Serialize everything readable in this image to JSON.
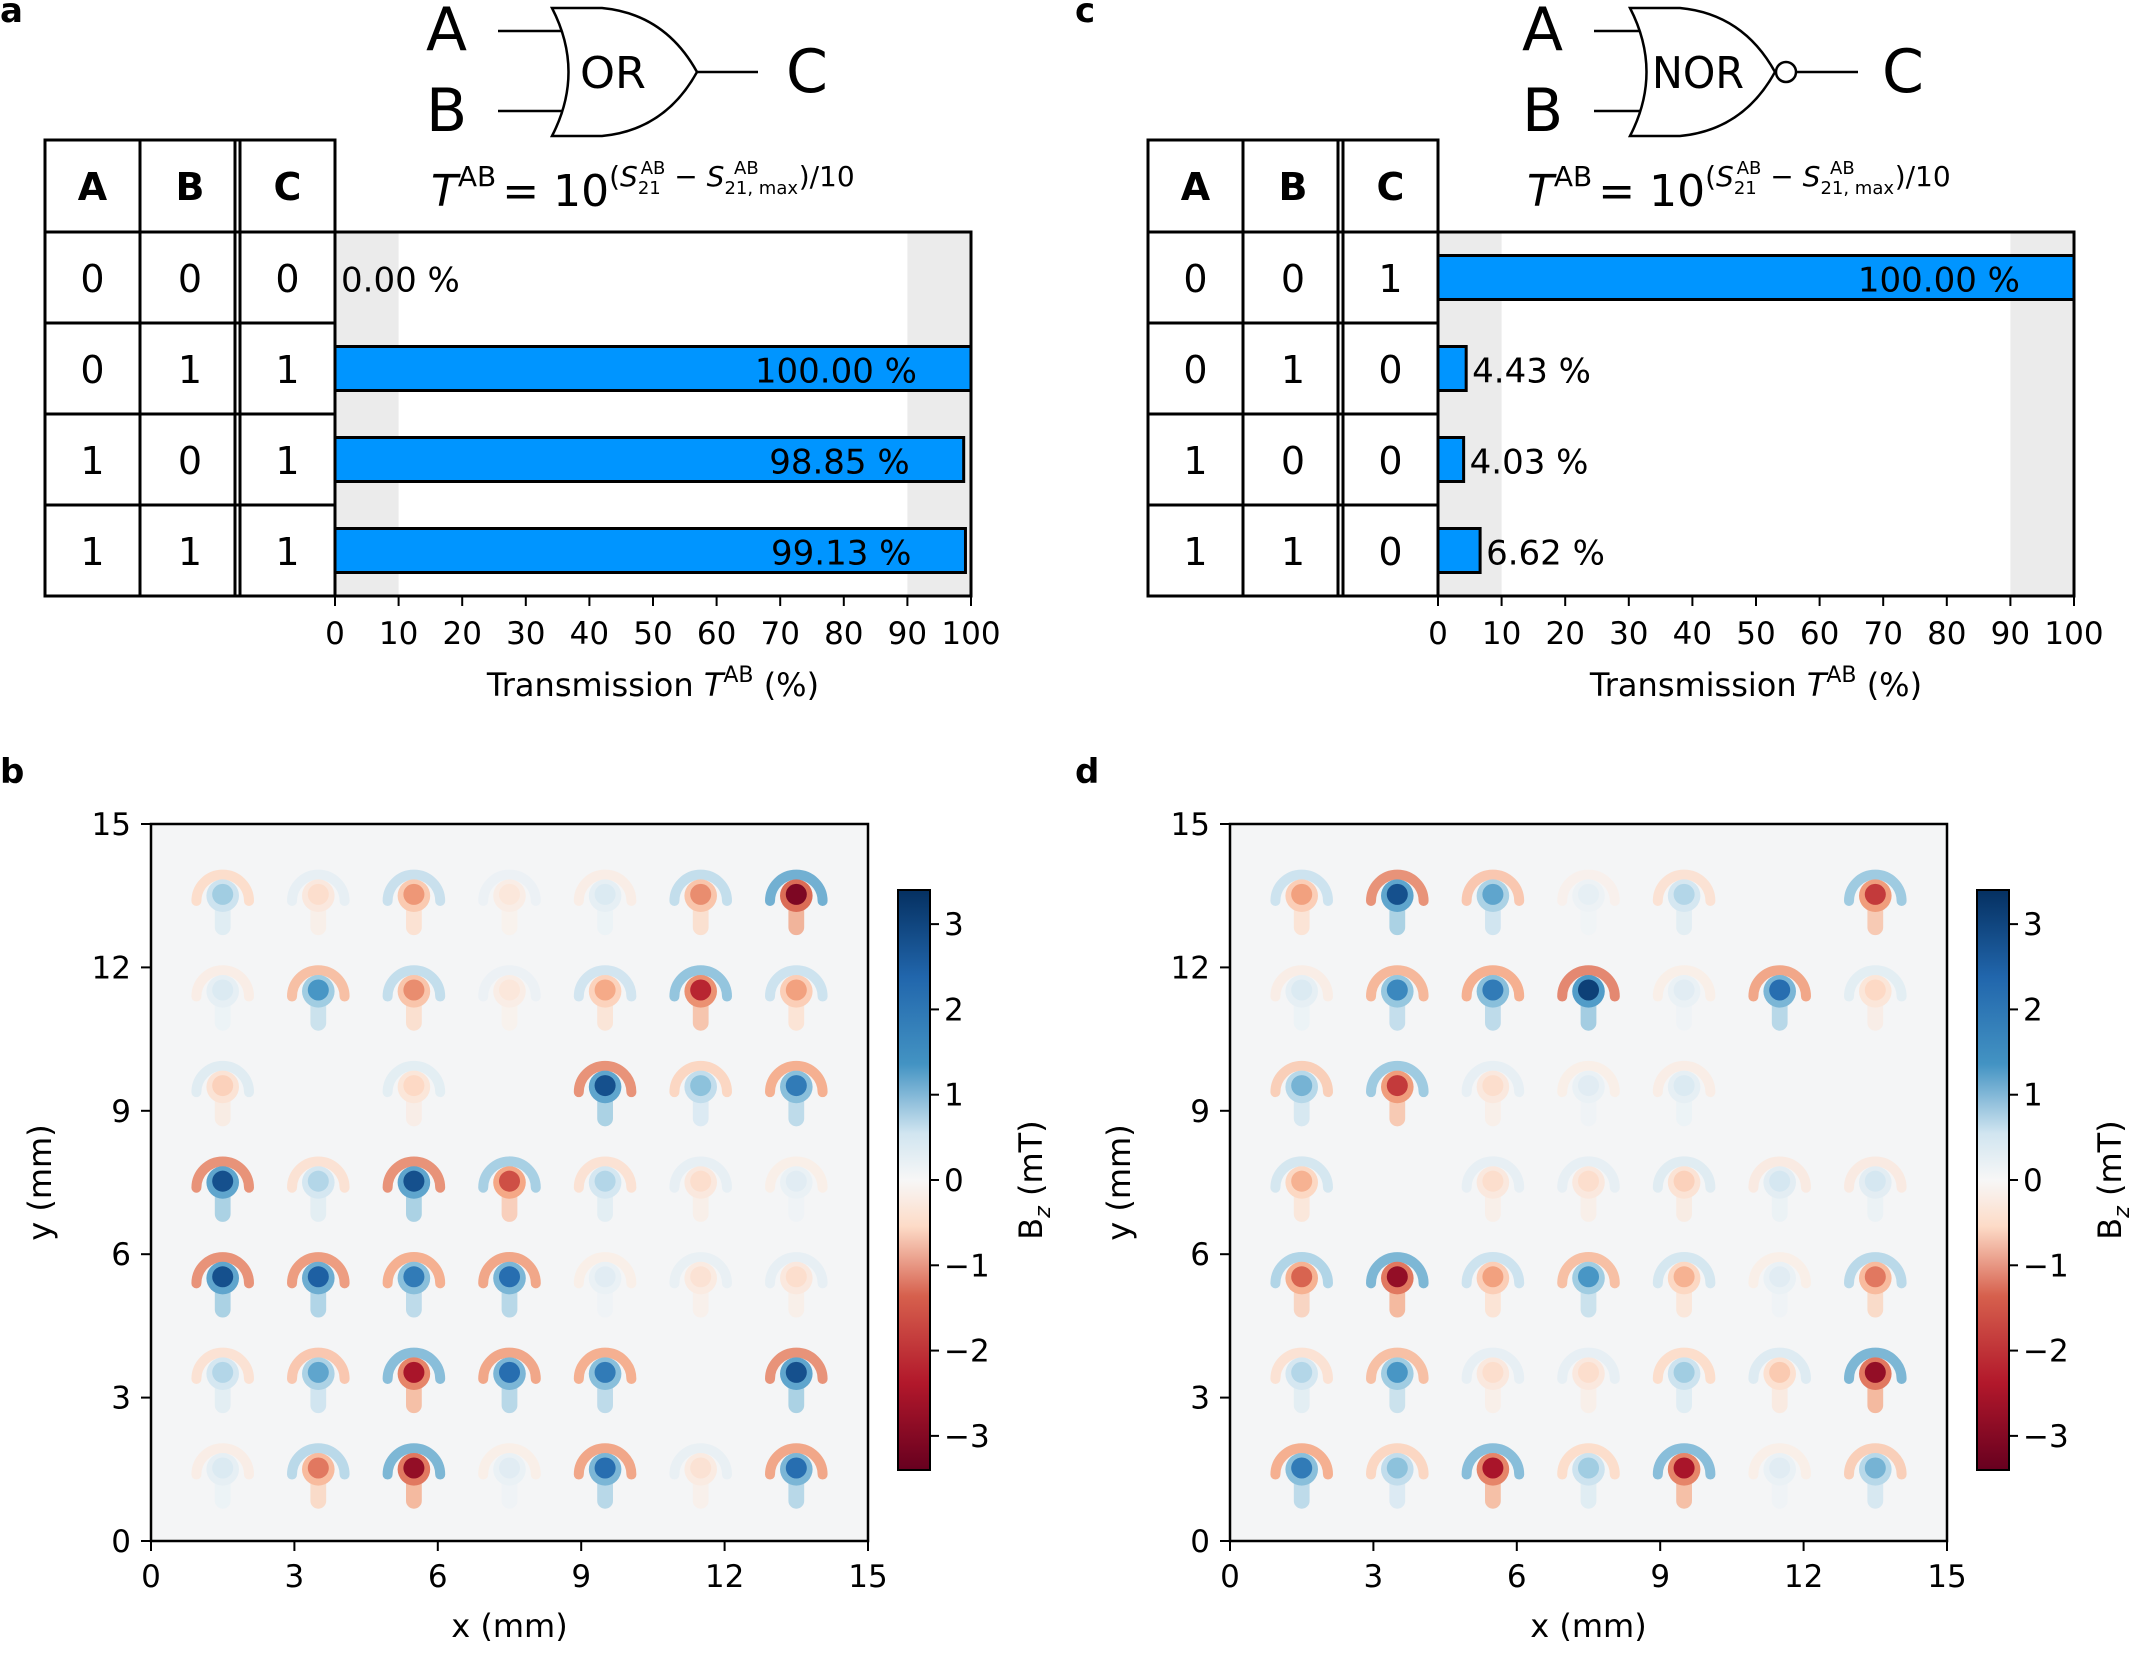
{
  "panels": {
    "a": {
      "letter": "a"
    },
    "b": {
      "letter": "b"
    },
    "c": {
      "letter": "c"
    },
    "d": {
      "letter": "d"
    }
  },
  "formula": {
    "T": "T",
    "T_sup": "AB",
    "eq": "= 10",
    "paren_open": "(",
    "S": "S",
    "S_sub": "21",
    "S_sup": "AB",
    "minus": " − ",
    "S_sub_max": "21, max",
    "tail": ")/10"
  },
  "chart_data": [
    {
      "type": "bar",
      "panel": "a",
      "gate": {
        "name": "OR",
        "input_a": "A",
        "input_b": "B",
        "output": "C"
      },
      "truth_table": {
        "headers": [
          "A",
          "B",
          "C"
        ],
        "rows": [
          [
            "0",
            "0",
            "0"
          ],
          [
            "0",
            "1",
            "1"
          ],
          [
            "1",
            "0",
            "1"
          ],
          [
            "1",
            "1",
            "1"
          ]
        ]
      },
      "orientation": "horizontal",
      "values": [
        0.0,
        100.0,
        98.85,
        99.13
      ],
      "labels": [
        "0.00 %",
        "100.00 %",
        "98.85 %",
        "99.13 %"
      ],
      "xlim": [
        0,
        100
      ],
      "xticks": [
        "0",
        "10",
        "20",
        "30",
        "40",
        "50",
        "60",
        "70",
        "80",
        "90",
        "100"
      ],
      "shaded_bands": [
        [
          0,
          10
        ],
        [
          90,
          100
        ]
      ],
      "xlabel": "Transmission ",
      "xlabel_T": "T",
      "xlabel_sup": "AB",
      "xlabel_unit": " (%)",
      "bar_color": "#0095ff",
      "band_color": "#ebebeb"
    },
    {
      "type": "bar",
      "panel": "c",
      "gate": {
        "name": "NOR",
        "input_a": "A",
        "input_b": "B",
        "output": "C"
      },
      "truth_table": {
        "headers": [
          "A",
          "B",
          "C"
        ],
        "rows": [
          [
            "0",
            "0",
            "1"
          ],
          [
            "0",
            "1",
            "0"
          ],
          [
            "1",
            "0",
            "0"
          ],
          [
            "1",
            "1",
            "0"
          ]
        ]
      },
      "orientation": "horizontal",
      "values": [
        100.0,
        4.43,
        4.03,
        6.62
      ],
      "labels": [
        "100.00 %",
        "4.43 %",
        "4.03 %",
        "6.62 %"
      ],
      "xlim": [
        0,
        100
      ],
      "xticks": [
        "0",
        "10",
        "20",
        "30",
        "40",
        "50",
        "60",
        "70",
        "80",
        "90",
        "100"
      ],
      "shaded_bands": [
        [
          0,
          10
        ],
        [
          90,
          100
        ]
      ],
      "xlabel": "Transmission ",
      "xlabel_T": "T",
      "xlabel_sup": "AB",
      "xlabel_unit": " (%)",
      "bar_color": "#0095ff",
      "band_color": "#ebebeb"
    },
    {
      "type": "heatmap",
      "panel": "b",
      "xlabel": "x (mm)",
      "ylabel": "y (mm)",
      "xlim": [
        0,
        15
      ],
      "ylim": [
        0,
        15
      ],
      "xticks": [
        "0",
        "3",
        "6",
        "9",
        "12",
        "15"
      ],
      "yticks": [
        "0",
        "3",
        "6",
        "9",
        "12",
        "15"
      ],
      "colorbar_label": "B",
      "colorbar_sub": "z",
      "colorbar_unit": " (mT)",
      "colorbar_range": [
        -3.4,
        3.4
      ],
      "colorbar_ticks": [
        "3",
        "2",
        "1",
        "0",
        "−1",
        "−2",
        "−3"
      ],
      "colormap": "RdBu",
      "source_centers_x": [
        1.5,
        3.5,
        5.5,
        7.5,
        9.5,
        11.5,
        13.5
      ],
      "source_centers_y": [
        13.5,
        11.5,
        9.5,
        7.5,
        5.5,
        3.5,
        1.5
      ],
      "field_amplitude_grid": [
        [
          1.2,
          -0.6,
          -1.5,
          -0.4,
          0.5,
          -1.6,
          -3.2
        ],
        [
          0.5,
          2.0,
          -1.6,
          -0.4,
          -1.3,
          -2.6,
          -1.4
        ],
        [
          -0.8,
          0.0,
          -0.7,
          0.0,
          3.0,
          1.4,
          2.4
        ],
        [
          3.0,
          1.0,
          3.0,
          -2.2,
          1.0,
          -0.6,
          0.4
        ],
        [
          3.0,
          2.8,
          2.4,
          2.6,
          0.4,
          -0.5,
          -0.6
        ],
        [
          1.0,
          1.8,
          -2.8,
          2.6,
          2.4,
          0.0,
          3.0
        ],
        [
          0.5,
          -1.8,
          -3.0,
          0.4,
          2.6,
          -0.5,
          2.6
        ]
      ]
    },
    {
      "type": "heatmap",
      "panel": "d",
      "xlabel": "x (mm)",
      "ylabel": "y (mm)",
      "xlim": [
        0,
        15
      ],
      "ylim": [
        0,
        15
      ],
      "xticks": [
        "0",
        "3",
        "6",
        "9",
        "12",
        "15"
      ],
      "yticks": [
        "0",
        "3",
        "6",
        "9",
        "12",
        "15"
      ],
      "colorbar_label": "B",
      "colorbar_sub": "z",
      "colorbar_unit": " (mT)",
      "colorbar_range": [
        -3.4,
        3.4
      ],
      "colorbar_ticks": [
        "3",
        "2",
        "1",
        "0",
        "−1",
        "−2",
        "−3"
      ],
      "colormap": "RdBu",
      "source_centers_x": [
        1.5,
        3.5,
        5.5,
        7.5,
        9.5,
        11.5,
        13.5
      ],
      "source_centers_y": [
        13.5,
        11.5,
        9.5,
        7.5,
        5.5,
        3.5,
        1.5
      ],
      "field_amplitude_grid": [
        [
          -1.4,
          3.0,
          1.8,
          0.3,
          1.0,
          0.0,
          -2.4
        ],
        [
          0.5,
          2.2,
          2.4,
          3.2,
          0.4,
          2.6,
          -0.7
        ],
        [
          1.6,
          -2.4,
          -0.6,
          0.4,
          0.5,
          0.0,
          0.0
        ],
        [
          -1.2,
          0.0,
          -0.6,
          -0.6,
          -0.8,
          0.6,
          0.6
        ],
        [
          -2.0,
          -3.0,
          -1.4,
          2.0,
          -1.2,
          0.4,
          -1.8
        ],
        [
          1.0,
          2.0,
          -0.6,
          -0.6,
          1.2,
          -0.9,
          -3.0
        ],
        [
          2.4,
          1.4,
          -2.8,
          1.2,
          -2.8,
          0.4,
          1.6
        ]
      ]
    }
  ]
}
